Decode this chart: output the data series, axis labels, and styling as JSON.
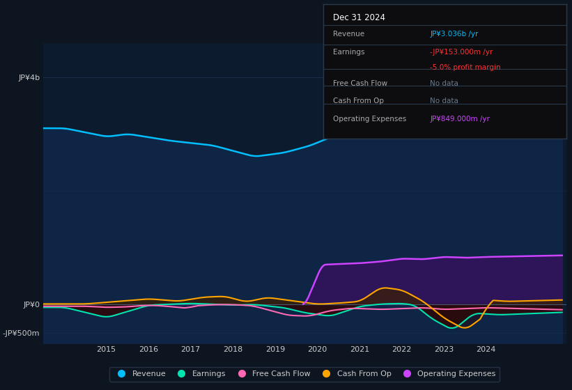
{
  "bg_color": "#0d1520",
  "plot_bg_color": "#0d1b2e",
  "revenue_color": "#00bfff",
  "revenue_fill_color": "#0a2540",
  "earnings_color": "#00e5b0",
  "earnings_fill_neg": "#2a0a0a",
  "fcf_color": "#ff69b4",
  "cashop_color": "#ffa500",
  "cashop_fill": "#2a1a00",
  "opex_color": "#cc44ff",
  "opex_fill_color": "#3a1060",
  "grid_color": "#1e3050",
  "text_color": "#cccccc",
  "hline_color": "#2a4060",
  "legend_items": [
    {
      "label": "Revenue",
      "color": "#00bfff"
    },
    {
      "label": "Earnings",
      "color": "#00e5b0"
    },
    {
      "label": "Free Cash Flow",
      "color": "#ff69b4"
    },
    {
      "label": "Cash From Op",
      "color": "#ffa500"
    },
    {
      "label": "Operating Expenses",
      "color": "#cc44ff"
    }
  ]
}
